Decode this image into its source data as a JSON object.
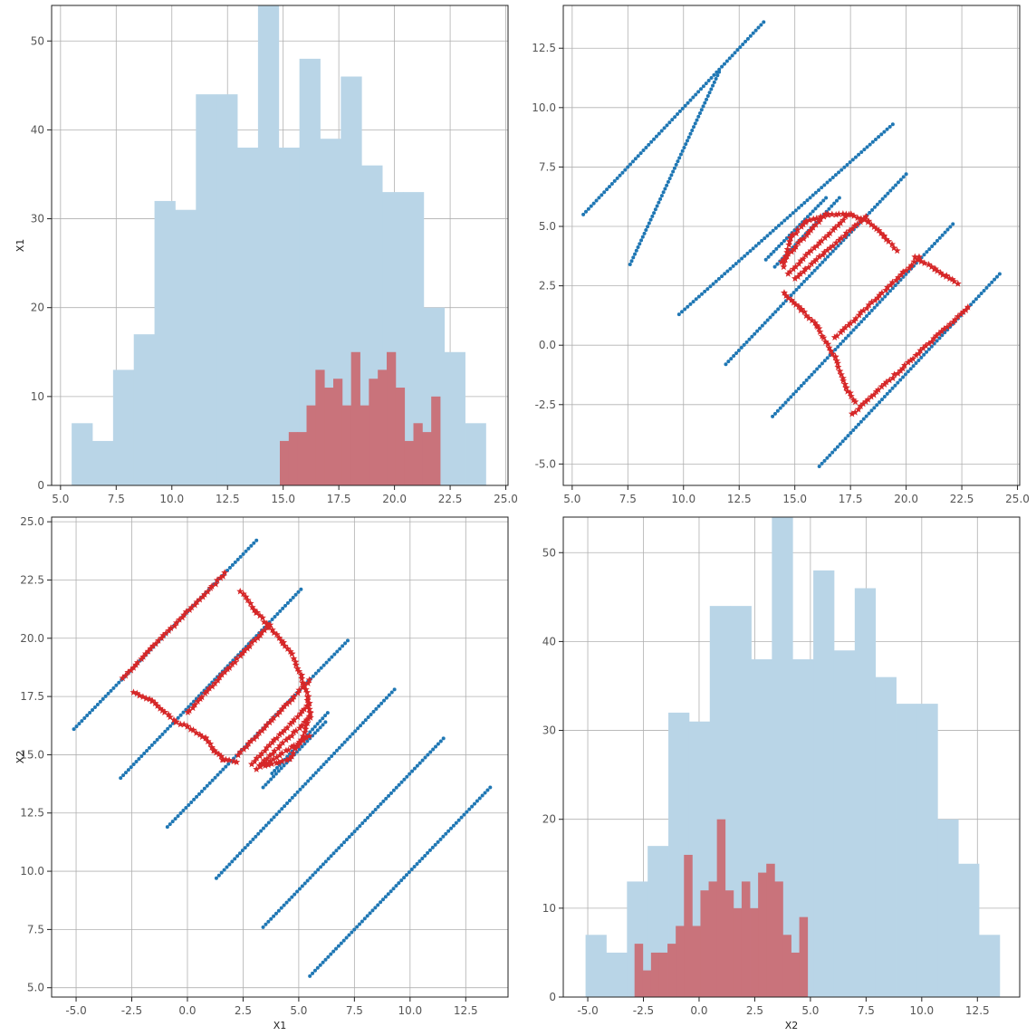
{
  "chart_data": [
    {
      "type": "histogram",
      "position": "top-left",
      "xlabel": "",
      "ylabel": "X1",
      "xlim": [
        4.6,
        25.1
      ],
      "ylim": [
        0,
        54
      ],
      "xticks": [
        5.0,
        7.5,
        10.0,
        12.5,
        15.0,
        17.5,
        20.0,
        22.5,
        25.0
      ],
      "yticks": [
        0,
        10,
        20,
        30,
        40,
        50
      ],
      "grid": true,
      "series": [
        {
          "color": "#b9d5e7",
          "bin_start": 5.5,
          "bin_width": 0.93,
          "values": [
            7,
            5,
            13,
            17,
            32,
            31,
            44,
            44,
            38,
            54,
            38,
            48,
            39,
            46,
            36,
            33,
            33,
            20,
            15,
            7
          ]
        },
        {
          "color": "#c9737b",
          "bin_start": 14.85,
          "bin_width": 0.4,
          "values": [
            5,
            6,
            6,
            9,
            13,
            11,
            12,
            9,
            15,
            9,
            12,
            13,
            15,
            11,
            5,
            7,
            6,
            10
          ]
        }
      ]
    },
    {
      "type": "scatter",
      "position": "top-right",
      "xlabel": "",
      "ylabel": "",
      "xlim": [
        4.6,
        25.1
      ],
      "ylim": [
        -5.9,
        14.3
      ],
      "xticks": [
        5.0,
        7.5,
        10.0,
        12.5,
        15.0,
        17.5,
        20.0,
        22.5,
        25.0
      ],
      "yticks": [
        -5.0,
        -2.5,
        0.0,
        2.5,
        5.0,
        7.5,
        10.0,
        12.5
      ],
      "grid": true,
      "series": [
        {
          "marker": "dot",
          "color": "#1f77b4",
          "segments": [
            [
              [
                5.5,
                5.5
              ],
              [
                13.6,
                13.6
              ]
            ],
            [
              [
                7.6,
                3.4
              ],
              [
                11.6,
                11.5
              ]
            ],
            [
              [
                9.8,
                1.3
              ],
              [
                19.4,
                9.3
              ]
            ],
            [
              [
                11.9,
                -0.8
              ],
              [
                20.0,
                7.2
              ]
            ],
            [
              [
                14.0,
                -3.0
              ],
              [
                22.1,
                5.1
              ]
            ],
            [
              [
                16.1,
                -5.1
              ],
              [
                24.2,
                3.0
              ]
            ],
            [
              [
                13.7,
                3.6
              ],
              [
                16.4,
                6.2
              ]
            ],
            [
              [
                14.1,
                3.3
              ],
              [
                17.0,
                6.2
              ]
            ]
          ]
        },
        {
          "marker": "star",
          "color": "#d62728",
          "polylines": [
            [
              [
                14.5,
                3.3
              ],
              [
                14.8,
                4.5
              ],
              [
                15.5,
                5.2
              ],
              [
                16.5,
                5.5
              ],
              [
                17.5,
                5.5
              ],
              [
                18.3,
                5.2
              ],
              [
                19.0,
                4.6
              ],
              [
                19.6,
                4.0
              ]
            ],
            [
              [
                14.4,
                3.5
              ],
              [
                16.4,
                5.5
              ]
            ],
            [
              [
                14.7,
                3.0
              ],
              [
                17.4,
                5.5
              ]
            ],
            [
              [
                15.0,
                2.8
              ],
              [
                18.2,
                5.4
              ]
            ],
            [
              [
                16.8,
                0.3
              ],
              [
                20.6,
                3.7
              ]
            ],
            [
              [
                17.6,
                -2.9
              ],
              [
                22.8,
                1.6
              ]
            ],
            [
              [
                20.4,
                3.7
              ],
              [
                21.3,
                3.2
              ],
              [
                21.8,
                2.9
              ],
              [
                22.3,
                2.6
              ]
            ],
            [
              [
                14.5,
                2.2
              ],
              [
                15.3,
                1.5
              ],
              [
                16.0,
                0.8
              ],
              [
                16.8,
                -0.5
              ],
              [
                17.3,
                -1.8
              ],
              [
                17.7,
                -2.4
              ]
            ]
          ]
        }
      ]
    },
    {
      "type": "scatter",
      "position": "bottom-left",
      "xlabel": "X1",
      "ylabel": "X2",
      "xlim": [
        -6.1,
        14.4
      ],
      "ylim": [
        4.6,
        25.2
      ],
      "xticks": [
        -5.0,
        -2.5,
        0.0,
        2.5,
        5.0,
        7.5,
        10.0,
        12.5
      ],
      "yticks": [
        5.0,
        7.5,
        10.0,
        12.5,
        15.0,
        17.5,
        20.0,
        22.5,
        25.0
      ],
      "grid": true,
      "series": [
        {
          "marker": "dot",
          "color": "#1f77b4",
          "segments": [
            [
              [
                -5.1,
                16.1
              ],
              [
                3.1,
                24.2
              ]
            ],
            [
              [
                -3.0,
                14.0
              ],
              [
                5.1,
                22.1
              ]
            ],
            [
              [
                -0.9,
                11.9
              ],
              [
                7.2,
                19.9
              ]
            ],
            [
              [
                1.3,
                9.7
              ],
              [
                9.3,
                17.8
              ]
            ],
            [
              [
                3.4,
                7.6
              ],
              [
                11.5,
                15.7
              ]
            ],
            [
              [
                5.5,
                5.5
              ],
              [
                13.6,
                13.6
              ]
            ],
            [
              [
                3.4,
                13.6
              ],
              [
                6.2,
                16.4
              ]
            ],
            [
              [
                3.8,
                14.2
              ],
              [
                6.3,
                16.8
              ]
            ]
          ]
        },
        {
          "marker": "star",
          "color": "#d62728",
          "polylines": [
            [
              [
                -2.9,
                18.3
              ],
              [
                1.7,
                22.8
              ]
            ],
            [
              [
                0.0,
                16.8
              ],
              [
                3.7,
                20.6
              ]
            ],
            [
              [
                2.3,
                15.0
              ],
              [
                5.5,
                18.2
              ]
            ],
            [
              [
                2.9,
                14.6
              ],
              [
                5.5,
                17.2
              ]
            ],
            [
              [
                3.1,
                14.4
              ],
              [
                5.5,
                16.6
              ]
            ],
            [
              [
                3.3,
                14.5
              ],
              [
                5.5,
                15.8
              ]
            ],
            [
              [
                2.4,
                22.0
              ],
              [
                3.1,
                21.1
              ],
              [
                3.6,
                20.6
              ],
              [
                4.3,
                19.8
              ],
              [
                4.7,
                19.3
              ],
              [
                5.1,
                18.4
              ],
              [
                5.4,
                17.5
              ],
              [
                5.5,
                16.8
              ],
              [
                5.2,
                15.8
              ],
              [
                4.6,
                14.8
              ],
              [
                3.5,
                14.5
              ]
            ],
            [
              [
                -2.4,
                17.7
              ],
              [
                -1.6,
                17.3
              ],
              [
                -1.0,
                16.8
              ],
              [
                -0.5,
                16.4
              ],
              [
                0.0,
                16.2
              ],
              [
                0.8,
                15.7
              ],
              [
                1.2,
                15.2
              ],
              [
                1.6,
                14.8
              ],
              [
                2.2,
                14.7
              ]
            ]
          ]
        }
      ]
    },
    {
      "type": "histogram",
      "position": "bottom-right",
      "xlabel": "X2",
      "ylabel": "",
      "xlim": [
        -6.1,
        14.4
      ],
      "ylim": [
        0,
        54
      ],
      "xticks": [
        -5.0,
        -2.5,
        0.0,
        2.5,
        5.0,
        7.5,
        10.0,
        12.5
      ],
      "yticks": [
        0,
        10,
        20,
        30,
        40,
        50
      ],
      "grid": true,
      "series": [
        {
          "color": "#b9d5e7",
          "bin_start": -5.1,
          "bin_width": 0.93,
          "values": [
            7,
            5,
            13,
            17,
            32,
            31,
            44,
            44,
            38,
            54,
            38,
            48,
            39,
            46,
            36,
            33,
            33,
            20,
            15,
            7
          ]
        },
        {
          "color": "#c9737b",
          "bin_start": -2.9,
          "bin_width": 0.37,
          "values": [
            6,
            3,
            5,
            5,
            6,
            8,
            16,
            8,
            12,
            13,
            20,
            12,
            10,
            13,
            10,
            14,
            15,
            13,
            7,
            5,
            9
          ]
        }
      ]
    }
  ]
}
